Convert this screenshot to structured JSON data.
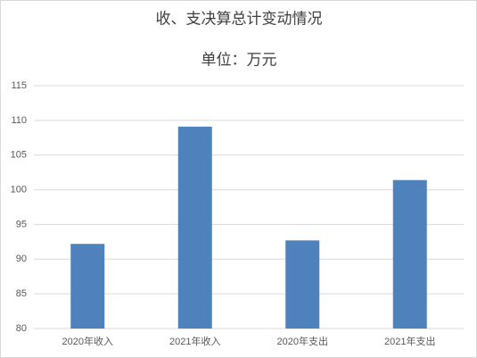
{
  "chart_data": {
    "type": "bar",
    "title": "收、支决算总计变动情况",
    "subtitle": "单位：万元",
    "categories": [
      "2020年收入",
      "2021年收入",
      "2020年支出",
      "2021年支出"
    ],
    "values": [
      92.2,
      109.1,
      92.7,
      101.4
    ],
    "color": "#4f81bd",
    "ylim": [
      80,
      115
    ],
    "yticks": [
      80,
      85,
      90,
      95,
      100,
      105,
      110,
      115
    ],
    "grid": true
  }
}
